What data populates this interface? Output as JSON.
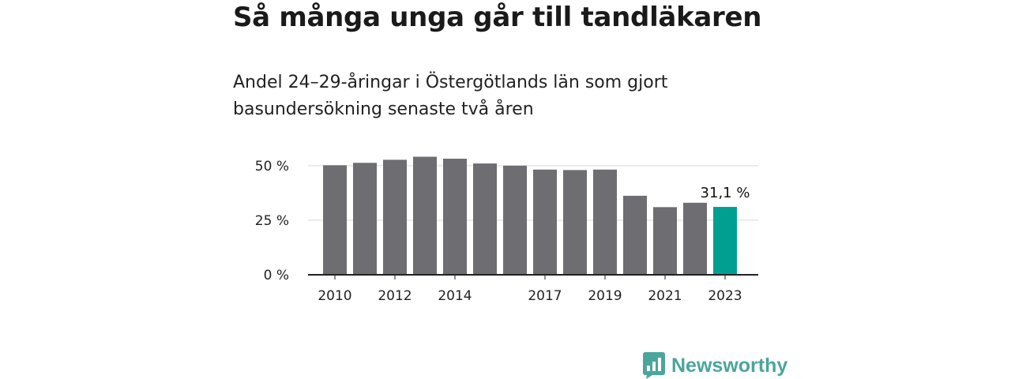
{
  "title": "Så många unga går till tandläkaren",
  "subtitle": "Andel 24–29-åringar i Östergötlands län som gjort basundersökning senaste två åren",
  "brand": "Newsworthy",
  "colors": {
    "bar": "#6e6d72",
    "highlight": "#009f92",
    "grid": "#d9d9d9",
    "axis": "#222222",
    "brand": "#4aa69c"
  },
  "chart_data": {
    "type": "bar",
    "x": [
      2010,
      2011,
      2012,
      2013,
      2014,
      2015,
      2016,
      2017,
      2018,
      2019,
      2020,
      2021,
      2022,
      2023
    ],
    "values": [
      50.2,
      51.3,
      52.7,
      54.1,
      53.2,
      51.0,
      50.0,
      48.2,
      48.0,
      48.2,
      36.2,
      31.0,
      33.0,
      31.1
    ],
    "x_tick_labels": [
      "2010",
      "2012",
      "2014",
      "2017",
      "2019",
      "2021",
      "2023"
    ],
    "y_ticks": [
      {
        "value": 0,
        "label": "0 %"
      },
      {
        "value": 25,
        "label": "25 %"
      },
      {
        "value": 50,
        "label": "50 %"
      }
    ],
    "ylim": [
      0,
      55
    ],
    "grid": true,
    "highlight": {
      "x": 2023,
      "label": "31,1 %"
    }
  }
}
